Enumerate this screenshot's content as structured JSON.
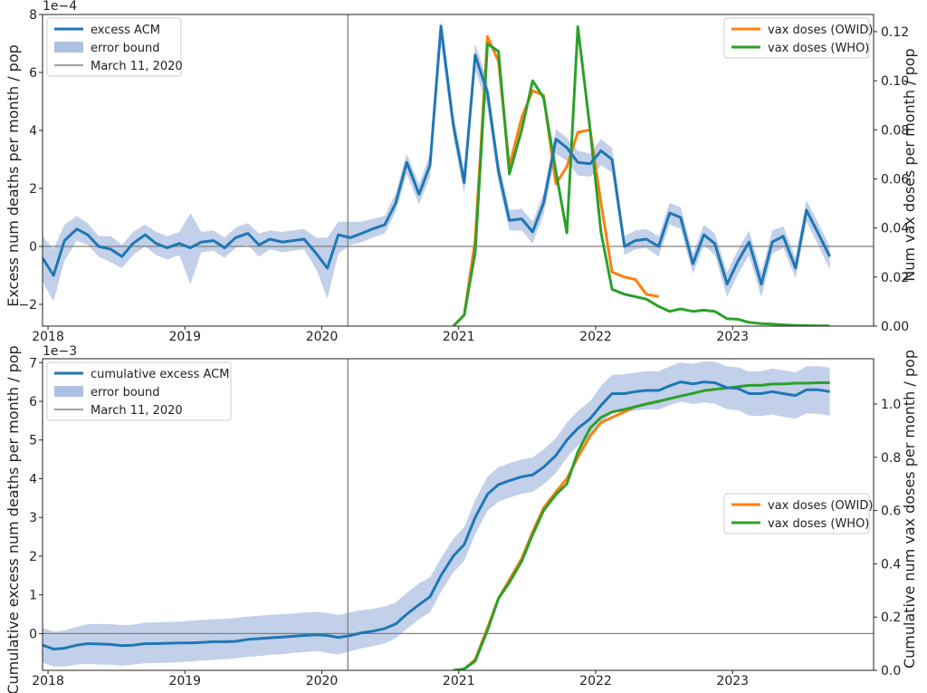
{
  "chart_data": [
    {
      "type": "line",
      "scale_label": "1e−4",
      "ylabel": "Excess num deaths per month / pop",
      "y2label": "Num vax doses per month / pop",
      "x_ticks": [
        "2018",
        "2019",
        "2020",
        "2021",
        "2022",
        "2023"
      ],
      "xlim": [
        2017.96,
        2024.03
      ],
      "ylim": [
        -2.75,
        8.0
      ],
      "y_ticks": [
        -2,
        0,
        2,
        4,
        6,
        8
      ],
      "y2lim": [
        0.0,
        0.127
      ],
      "y2_ticks": [
        "0.00",
        "0.02",
        "0.04",
        "0.06",
        "0.08",
        "0.10",
        "0.12"
      ],
      "y2_tick_values": [
        0.0,
        0.02,
        0.04,
        0.06,
        0.08,
        0.1,
        0.12
      ],
      "vline_x": 2020.19,
      "hline_y": 0,
      "legend_left": [
        "excess ACM",
        "error bound",
        "March 11, 2020"
      ],
      "legend_right": [
        "vax doses (OWID)",
        "vax doses (WHO)"
      ],
      "colors": {
        "acm": "#1f77b4",
        "band": "#aec0e2",
        "owid": "#ff7f0e",
        "who": "#2ca02c",
        "vline": "#808080"
      },
      "x": [
        2017.96,
        2018.04,
        2018.12,
        2018.21,
        2018.29,
        2018.37,
        2018.46,
        2018.54,
        2018.62,
        2018.71,
        2018.79,
        2018.87,
        2018.96,
        2019.04,
        2019.12,
        2019.21,
        2019.29,
        2019.37,
        2019.46,
        2019.54,
        2019.62,
        2019.71,
        2019.79,
        2019.87,
        2019.96,
        2020.04,
        2020.12,
        2020.21,
        2020.29,
        2020.37,
        2020.46,
        2020.54,
        2020.62,
        2020.71,
        2020.79,
        2020.87,
        2020.96,
        2021.04,
        2021.12,
        2021.21,
        2021.29,
        2021.37,
        2021.46,
        2021.54,
        2021.62,
        2021.71,
        2021.79,
        2021.87,
        2021.96,
        2022.04,
        2022.12,
        2022.21,
        2022.29,
        2022.37,
        2022.46,
        2022.54,
        2022.62,
        2022.71,
        2022.79,
        2022.87,
        2022.96,
        2023.04,
        2023.12,
        2023.21,
        2023.29,
        2023.37,
        2023.46,
        2023.54,
        2023.62,
        2023.71
      ],
      "acm": [
        -0.4,
        -1.0,
        0.2,
        0.6,
        0.4,
        0.0,
        -0.1,
        -0.35,
        0.1,
        0.4,
        0.1,
        -0.05,
        0.1,
        -0.05,
        0.15,
        0.2,
        -0.05,
        0.3,
        0.45,
        0.05,
        0.25,
        0.15,
        0.2,
        0.25,
        -0.25,
        -0.75,
        0.4,
        0.3,
        0.45,
        0.6,
        0.75,
        1.5,
        2.9,
        1.8,
        2.8,
        7.6,
        4.2,
        2.2,
        6.6,
        5.3,
        2.6,
        0.9,
        0.95,
        0.5,
        1.5,
        3.7,
        3.4,
        2.9,
        2.85,
        3.3,
        3.0,
        0.0,
        0.2,
        0.25,
        0.0,
        1.15,
        1.0,
        -0.6,
        0.4,
        0.1,
        -1.3,
        -0.5,
        0.15,
        -1.3,
        0.15,
        0.35,
        -0.75,
        1.25,
        0.5,
        -0.35
      ],
      "band_lo": [
        -1.2,
        -1.9,
        -0.5,
        0.2,
        0.05,
        -0.35,
        -0.55,
        -0.75,
        -0.3,
        0.0,
        -0.3,
        -0.45,
        -0.3,
        -1.3,
        -0.2,
        -0.15,
        -0.4,
        -0.05,
        0.05,
        -0.35,
        -0.1,
        -0.2,
        -0.15,
        -0.1,
        -0.8,
        -1.8,
        -0.25,
        0.05,
        0.15,
        0.3,
        0.45,
        1.2,
        2.5,
        1.45,
        2.4,
        7.0,
        3.8,
        1.8,
        6.1,
        4.8,
        2.2,
        0.55,
        0.55,
        0.1,
        1.1,
        3.2,
        2.95,
        2.45,
        2.4,
        2.8,
        2.55,
        -0.3,
        -0.1,
        -0.05,
        -0.35,
        0.75,
        0.6,
        -0.95,
        0.05,
        -0.3,
        -1.75,
        -0.95,
        -0.3,
        -1.75,
        -0.25,
        -0.05,
        -1.1,
        0.85,
        0.1,
        -0.8
      ],
      "band_hi": [
        0.35,
        -0.1,
        0.75,
        1.05,
        0.8,
        0.35,
        0.35,
        0.05,
        0.5,
        0.75,
        0.5,
        0.35,
        0.5,
        1.15,
        0.5,
        0.55,
        0.3,
        0.65,
        0.8,
        0.45,
        0.55,
        0.5,
        0.55,
        0.6,
        0.3,
        0.3,
        0.85,
        0.85,
        0.85,
        0.95,
        1.05,
        1.85,
        3.2,
        2.15,
        3.2,
        7.8,
        4.6,
        2.6,
        7.0,
        5.7,
        3.0,
        1.25,
        1.3,
        0.85,
        1.85,
        4.05,
        3.75,
        3.3,
        3.2,
        3.7,
        3.4,
        0.35,
        0.55,
        0.6,
        0.35,
        1.5,
        1.35,
        -0.25,
        0.75,
        0.45,
        -0.9,
        -0.1,
        0.55,
        -0.9,
        0.55,
        0.7,
        -0.4,
        1.6,
        0.85,
        0.0
      ],
      "owid_x": [
        2020.96,
        2021.04,
        2021.12,
        2021.21,
        2021.29,
        2021.37,
        2021.46,
        2021.54,
        2021.62,
        2021.71,
        2021.79,
        2021.87,
        2021.96,
        2022.04,
        2022.12,
        2022.21,
        2022.29,
        2022.37,
        2022.46
      ],
      "owid": [
        0.0,
        0.0045,
        0.035,
        0.118,
        0.108,
        0.065,
        0.085,
        0.096,
        0.094,
        0.058,
        0.065,
        0.079,
        0.08,
        0.05,
        0.022,
        0.02,
        0.019,
        0.013,
        0.012
      ],
      "who_x": [
        2020.96,
        2021.04,
        2021.12,
        2021.21,
        2021.29,
        2021.37,
        2021.46,
        2021.54,
        2021.62,
        2021.71,
        2021.79,
        2021.87,
        2021.96,
        2022.04,
        2022.12,
        2022.21,
        2022.29,
        2022.37,
        2022.46,
        2022.54,
        2022.62,
        2022.71,
        2022.79,
        2022.87,
        2022.96,
        2023.04,
        2023.12,
        2023.21,
        2023.29,
        2023.37,
        2023.46,
        2023.54,
        2023.62,
        2023.71
      ],
      "who": [
        0.0,
        0.0045,
        0.03,
        0.115,
        0.112,
        0.062,
        0.08,
        0.1,
        0.093,
        0.063,
        0.038,
        0.122,
        0.08,
        0.038,
        0.015,
        0.013,
        0.012,
        0.011,
        0.008,
        0.006,
        0.007,
        0.006,
        0.0065,
        0.006,
        0.003,
        0.0028,
        0.0015,
        0.001,
        0.0008,
        0.0005,
        0.0003,
        0.0002,
        0.0001,
        0.0001
      ]
    },
    {
      "type": "line",
      "scale_label": "1e−3",
      "ylabel": "Cumulative excess num deaths per month / pop",
      "y2label": "Cumulative num vax doses per month / pop",
      "x_ticks": [
        "2018",
        "2019",
        "2020",
        "2021",
        "2022",
        "2023"
      ],
      "xlim": [
        2017.96,
        2024.03
      ],
      "ylim": [
        -0.95,
        7.1
      ],
      "y_ticks": [
        0,
        1,
        2,
        3,
        4,
        5,
        6,
        7
      ],
      "y2lim": [
        0.0,
        1.17
      ],
      "y2_ticks": [
        "0.0",
        "0.2",
        "0.4",
        "0.6",
        "0.8",
        "1.0"
      ],
      "y2_tick_values": [
        0.0,
        0.2,
        0.4,
        0.6,
        0.8,
        1.0
      ],
      "vline_x": 2020.19,
      "hline_y": 0,
      "legend_left": [
        "cumulative excess ACM",
        "error bound",
        "March 11, 2020"
      ],
      "legend_right": [
        "vax doses (OWID)",
        "vax doses (WHO)"
      ],
      "colors": {
        "acm": "#1f77b4",
        "band": "#aec0e2",
        "owid": "#ff7f0e",
        "who": "#2ca02c",
        "vline": "#808080"
      },
      "x": [
        2017.96,
        2018.04,
        2018.12,
        2018.21,
        2018.29,
        2018.37,
        2018.46,
        2018.54,
        2018.62,
        2018.71,
        2018.79,
        2018.87,
        2018.96,
        2019.04,
        2019.12,
        2019.21,
        2019.29,
        2019.37,
        2019.46,
        2019.54,
        2019.62,
        2019.71,
        2019.79,
        2019.87,
        2019.96,
        2020.04,
        2020.12,
        2020.21,
        2020.29,
        2020.37,
        2020.46,
        2020.54,
        2020.62,
        2020.71,
        2020.79,
        2020.87,
        2020.96,
        2021.04,
        2021.12,
        2021.21,
        2021.29,
        2021.37,
        2021.46,
        2021.54,
        2021.62,
        2021.71,
        2021.79,
        2021.87,
        2021.96,
        2022.04,
        2022.12,
        2022.21,
        2022.29,
        2022.37,
        2022.46,
        2022.54,
        2022.62,
        2022.71,
        2022.79,
        2022.87,
        2022.96,
        2023.04,
        2023.12,
        2023.21,
        2023.29,
        2023.37,
        2023.46,
        2023.54,
        2023.62,
        2023.71
      ],
      "acm": [
        -0.3,
        -0.4,
        -0.38,
        -0.3,
        -0.26,
        -0.27,
        -0.28,
        -0.31,
        -0.3,
        -0.26,
        -0.26,
        -0.25,
        -0.24,
        -0.24,
        -0.23,
        -0.21,
        -0.21,
        -0.2,
        -0.15,
        -0.13,
        -0.11,
        -0.09,
        -0.07,
        -0.05,
        -0.03,
        -0.05,
        -0.1,
        -0.05,
        0.02,
        0.06,
        0.13,
        0.25,
        0.5,
        0.75,
        0.95,
        1.5,
        2.0,
        2.3,
        3.0,
        3.6,
        3.85,
        3.95,
        4.05,
        4.1,
        4.3,
        4.6,
        5.0,
        5.3,
        5.55,
        5.9,
        6.2,
        6.2,
        6.25,
        6.28,
        6.28,
        6.4,
        6.5,
        6.45,
        6.5,
        6.48,
        6.35,
        6.33,
        6.2,
        6.2,
        6.25,
        6.2,
        6.15,
        6.3,
        6.3,
        6.25
      ],
      "band_lo": [
        -0.75,
        -0.85,
        -0.85,
        -0.8,
        -0.78,
        -0.8,
        -0.8,
        -0.83,
        -0.8,
        -0.77,
        -0.76,
        -0.75,
        -0.74,
        -0.72,
        -0.7,
        -0.68,
        -0.66,
        -0.64,
        -0.6,
        -0.58,
        -0.55,
        -0.53,
        -0.5,
        -0.48,
        -0.45,
        -0.5,
        -0.54,
        -0.45,
        -0.38,
        -0.33,
        -0.25,
        -0.12,
        0.12,
        0.37,
        0.55,
        1.08,
        1.58,
        1.88,
        2.57,
        3.17,
        3.41,
        3.51,
        3.61,
        3.66,
        3.85,
        4.15,
        4.55,
        4.85,
        5.1,
        5.42,
        5.72,
        5.72,
        5.76,
        5.79,
        5.79,
        5.9,
        5.99,
        5.93,
        5.97,
        5.94,
        5.8,
        5.77,
        5.63,
        5.62,
        5.66,
        5.6,
        5.55,
        5.69,
        5.68,
        5.63
      ],
      "band_hi": [
        0.15,
        0.05,
        0.08,
        0.18,
        0.24,
        0.25,
        0.24,
        0.22,
        0.23,
        0.28,
        0.29,
        0.3,
        0.31,
        0.33,
        0.35,
        0.37,
        0.38,
        0.4,
        0.44,
        0.46,
        0.48,
        0.5,
        0.52,
        0.54,
        0.56,
        0.53,
        0.48,
        0.55,
        0.6,
        0.64,
        0.7,
        0.8,
        1.05,
        1.3,
        1.45,
        1.95,
        2.45,
        2.75,
        3.45,
        4.05,
        4.3,
        4.4,
        4.5,
        4.55,
        4.75,
        5.05,
        5.45,
        5.75,
        6.0,
        6.4,
        6.68,
        6.7,
        6.74,
        6.78,
        6.78,
        6.9,
        7.0,
        6.97,
        7.03,
        7.02,
        6.9,
        6.88,
        6.77,
        6.78,
        6.85,
        6.8,
        6.75,
        6.9,
        6.91,
        6.87
      ],
      "owid_x": [
        2020.96,
        2021.04,
        2021.12,
        2021.21,
        2021.29,
        2021.37,
        2021.46,
        2021.54,
        2021.62,
        2021.71,
        2021.79,
        2021.87,
        2021.96,
        2022.04,
        2022.12,
        2022.21,
        2022.29,
        2022.37,
        2022.46
      ],
      "owid": [
        0.0,
        0.005,
        0.04,
        0.16,
        0.27,
        0.34,
        0.42,
        0.52,
        0.61,
        0.67,
        0.72,
        0.8,
        0.88,
        0.93,
        0.95,
        0.97,
        0.99,
        1.0,
        1.01
      ],
      "who_x": [
        2020.96,
        2021.04,
        2021.12,
        2021.21,
        2021.29,
        2021.37,
        2021.46,
        2021.54,
        2021.62,
        2021.71,
        2021.79,
        2021.87,
        2021.96,
        2022.04,
        2022.12,
        2022.21,
        2022.29,
        2022.37,
        2022.46,
        2022.54,
        2022.62,
        2022.71,
        2022.79,
        2022.87,
        2022.96,
        2023.04,
        2023.12,
        2023.21,
        2023.29,
        2023.37,
        2023.46,
        2023.54,
        2023.62,
        2023.71
      ],
      "who": [
        0.0,
        0.005,
        0.035,
        0.15,
        0.27,
        0.33,
        0.41,
        0.51,
        0.6,
        0.66,
        0.7,
        0.82,
        0.91,
        0.95,
        0.97,
        0.98,
        0.99,
        1.0,
        1.01,
        1.02,
        1.03,
        1.04,
        1.05,
        1.055,
        1.06,
        1.065,
        1.07,
        1.07,
        1.075,
        1.075,
        1.078,
        1.078,
        1.08,
        1.08
      ]
    }
  ]
}
